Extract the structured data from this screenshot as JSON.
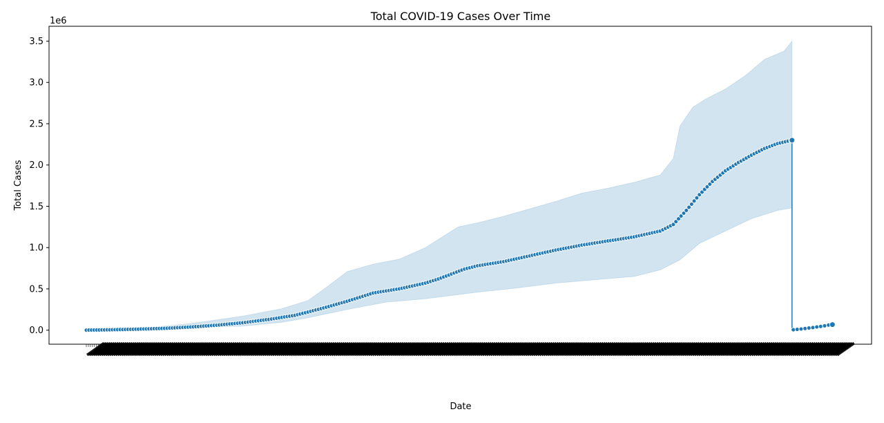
{
  "chart_data": {
    "type": "line",
    "title": "Total COVID-19 Cases Over Time",
    "xlabel": "Date",
    "ylabel": "Total Cases",
    "y_offset_label": "1e6",
    "ylim": [
      -170000,
      3680000
    ],
    "yticks": [
      0.0,
      0.5,
      1.0,
      1.5,
      2.0,
      2.5,
      3.0,
      3.5
    ],
    "ytick_labels": [
      "0.0",
      "0.5",
      "1.0",
      "1.5",
      "2.0",
      "2.5",
      "3.0",
      "3.5"
    ],
    "x_tick_count": 369,
    "x_tick_labels_note": "",
    "grid": false,
    "line_color": "#1f77b4",
    "band_color": "#1f77b4",
    "series": [
      {
        "mean": [
          [
            0,
            0
          ],
          [
            20,
            5000
          ],
          [
            40,
            12000
          ],
          [
            60,
            22000
          ],
          [
            80,
            38000
          ],
          [
            100,
            60000
          ],
          [
            120,
            90000
          ],
          [
            140,
            130000
          ],
          [
            160,
            180000
          ],
          [
            180,
            260000
          ],
          [
            200,
            350000
          ],
          [
            210,
            400000
          ],
          [
            220,
            450000
          ],
          [
            240,
            500000
          ],
          [
            260,
            570000
          ],
          [
            270,
            620000
          ],
          [
            280,
            680000
          ],
          [
            290,
            740000
          ],
          [
            300,
            780000
          ],
          [
            320,
            830000
          ],
          [
            340,
            900000
          ],
          [
            360,
            970000
          ],
          [
            380,
            1030000
          ],
          [
            400,
            1080000
          ],
          [
            420,
            1130000
          ],
          [
            440,
            1200000
          ],
          [
            450,
            1280000
          ],
          [
            460,
            1450000
          ],
          [
            470,
            1640000
          ],
          [
            480,
            1800000
          ],
          [
            490,
            1930000
          ],
          [
            500,
            2030000
          ],
          [
            510,
            2120000
          ],
          [
            520,
            2200000
          ],
          [
            530,
            2260000
          ],
          [
            541,
            2300000
          ]
        ],
        "band_upper": [
          [
            0,
            0
          ],
          [
            40,
            20000
          ],
          [
            80,
            80000
          ],
          [
            120,
            170000
          ],
          [
            150,
            260000
          ],
          [
            170,
            360000
          ],
          [
            185,
            530000
          ],
          [
            200,
            710000
          ],
          [
            220,
            800000
          ],
          [
            240,
            860000
          ],
          [
            260,
            1000000
          ],
          [
            270,
            1100000
          ],
          [
            285,
            1250000
          ],
          [
            300,
            1300000
          ],
          [
            320,
            1380000
          ],
          [
            340,
            1470000
          ],
          [
            360,
            1560000
          ],
          [
            380,
            1660000
          ],
          [
            400,
            1720000
          ],
          [
            420,
            1790000
          ],
          [
            440,
            1880000
          ],
          [
            450,
            2080000
          ],
          [
            455,
            2470000
          ],
          [
            465,
            2700000
          ],
          [
            475,
            2800000
          ],
          [
            490,
            2920000
          ],
          [
            505,
            3080000
          ],
          [
            520,
            3280000
          ],
          [
            535,
            3380000
          ],
          [
            541,
            3500000
          ]
        ],
        "band_lower": [
          [
            0,
            0
          ],
          [
            40,
            8000
          ],
          [
            80,
            25000
          ],
          [
            120,
            50000
          ],
          [
            150,
            95000
          ],
          [
            170,
            150000
          ],
          [
            200,
            250000
          ],
          [
            230,
            340000
          ],
          [
            260,
            380000
          ],
          [
            280,
            420000
          ],
          [
            300,
            460000
          ],
          [
            330,
            510000
          ],
          [
            360,
            570000
          ],
          [
            390,
            610000
          ],
          [
            420,
            650000
          ],
          [
            440,
            730000
          ],
          [
            455,
            850000
          ],
          [
            470,
            1050000
          ],
          [
            490,
            1200000
          ],
          [
            510,
            1350000
          ],
          [
            530,
            1450000
          ],
          [
            541,
            1480000
          ]
        ],
        "drop": [
          [
            541,
            2300000
          ],
          [
            541,
            5000
          ]
        ],
        "tail": [
          [
            542,
            5000
          ],
          [
            545,
            9000
          ],
          [
            548,
            14000
          ],
          [
            551,
            20000
          ],
          [
            554,
            26000
          ],
          [
            557,
            32000
          ],
          [
            560,
            38000
          ],
          [
            563,
            45000
          ],
          [
            566,
            53000
          ],
          [
            569,
            62000
          ],
          [
            572,
            68000
          ]
        ],
        "x_max": 575
      }
    ]
  }
}
